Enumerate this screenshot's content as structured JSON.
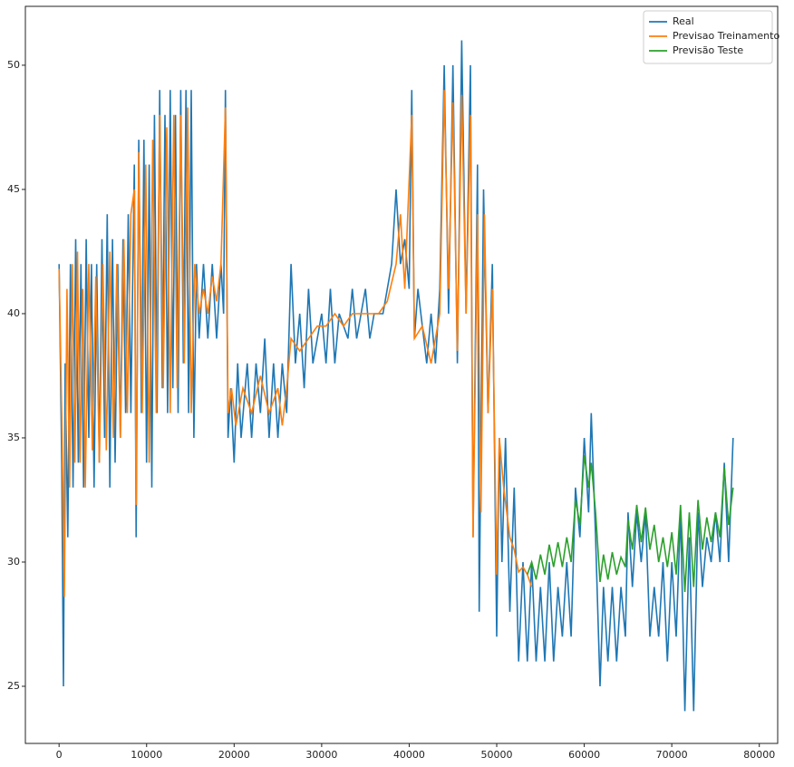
{
  "chart_data": {
    "type": "line",
    "xlim": [
      -3850,
      82100
    ],
    "ylim": [
      22.7,
      52.37
    ],
    "xticks": [
      0,
      10000,
      20000,
      30000,
      40000,
      50000,
      60000,
      70000,
      80000
    ],
    "yticks": [
      25,
      30,
      35,
      40,
      45,
      50
    ],
    "legend": "upper right",
    "series": [
      {
        "name": "Real",
        "color": "#1f77b4",
        "x": [
          0,
          300,
          500,
          700,
          1000,
          1300,
          1600,
          1900,
          2200,
          2500,
          2800,
          3100,
          3400,
          3700,
          4000,
          4300,
          4600,
          4900,
          5200,
          5500,
          5800,
          6100,
          6400,
          6700,
          7000,
          7300,
          7600,
          7900,
          8200,
          8600,
          8800,
          9100,
          9400,
          9700,
          10000,
          10300,
          10600,
          10900,
          11200,
          11500,
          11800,
          12100,
          12400,
          12700,
          13000,
          13300,
          13600,
          13900,
          14200,
          14500,
          14800,
          15100,
          15400,
          15700,
          16000,
          16500,
          17000,
          17500,
          18000,
          18500,
          18800,
          19000,
          19300,
          19600,
          20000,
          20400,
          20800,
          21500,
          22000,
          22500,
          23000,
          23500,
          24000,
          24500,
          25000,
          25500,
          26000,
          26500,
          27000,
          27500,
          28000,
          28500,
          29000,
          30000,
          30500,
          31000,
          31500,
          32000,
          33000,
          33500,
          34000,
          35000,
          35500,
          36000,
          37000,
          37500,
          38000,
          38500,
          39000,
          39500,
          40000,
          40300,
          40600,
          41000,
          42000,
          42500,
          43000,
          43500,
          44000,
          44500,
          45000,
          45500,
          46000,
          46500,
          47000,
          47300,
          47800,
          48000,
          48500,
          49000,
          49500,
          50000,
          50300,
          50600,
          51000,
          51500,
          52000,
          52500,
          53000,
          53500,
          54000,
          54500,
          55000,
          55500,
          56000,
          56500,
          57000,
          57500,
          58000,
          58500,
          59000,
          59500,
          60000,
          60500,
          60800,
          61300,
          61800,
          62200,
          62700,
          63200,
          63700,
          64200,
          64700,
          65000,
          65500,
          66000,
          66500,
          67000,
          67500,
          68000,
          68500,
          69000,
          69500,
          70000,
          70500,
          71000,
          71500,
          72000,
          72500,
          73000,
          73500,
          74000,
          74500,
          75000,
          75500,
          76000,
          76500,
          77000
        ],
        "values": [
          42,
          34,
          25,
          38,
          31,
          42,
          33,
          43,
          34,
          42,
          33,
          43,
          35,
          42,
          33,
          42,
          34,
          43,
          35,
          44,
          33,
          43,
          34,
          42,
          35,
          43,
          36,
          44,
          36,
          46,
          31,
          47,
          36,
          47,
          34,
          46,
          33,
          48,
          36,
          49,
          37,
          48,
          36,
          49,
          37,
          48,
          36,
          49,
          38,
          49,
          36,
          49,
          35,
          42,
          39,
          42,
          39,
          42,
          39,
          42,
          40,
          49,
          35,
          37,
          34,
          38,
          35,
          38,
          35,
          38,
          36,
          39,
          35,
          38,
          35,
          38,
          36,
          42,
          38,
          40,
          37,
          41,
          38,
          40,
          38,
          41,
          38,
          40,
          39,
          41,
          39,
          41,
          39,
          40,
          40,
          41,
          42,
          45,
          42,
          43,
          41,
          49,
          39,
          41,
          38,
          40,
          38,
          41,
          50,
          40,
          50,
          38,
          51,
          40,
          50,
          31,
          46,
          28,
          45,
          36,
          42,
          27,
          35,
          30,
          35,
          28,
          33,
          26,
          30,
          26,
          30,
          26,
          29,
          26,
          30,
          26,
          29,
          27,
          30,
          27,
          33,
          31,
          35,
          32,
          36,
          31,
          25,
          29,
          26,
          29,
          26,
          29,
          27,
          32,
          29,
          32,
          30,
          32,
          27,
          29,
          27,
          30,
          26,
          30,
          27,
          32,
          24,
          31,
          24,
          32,
          29,
          31,
          30,
          32,
          30,
          34,
          30,
          35
        ]
      },
      {
        "name": "Previsao Treinamento",
        "color": "#ff7f0e",
        "x": [
          0,
          300,
          600,
          900,
          1200,
          1500,
          1800,
          2100,
          2400,
          2700,
          3000,
          3400,
          3800,
          4200,
          4600,
          5000,
          5400,
          5800,
          6200,
          6600,
          7000,
          7400,
          7800,
          8200,
          8600,
          8800,
          9100,
          9500,
          9900,
          10300,
          10700,
          11100,
          11500,
          11900,
          12300,
          12700,
          13100,
          13500,
          13900,
          14300,
          14700,
          15100,
          15500,
          16000,
          16500,
          17000,
          17500,
          18000,
          18500,
          19000,
          19300,
          19700,
          20200,
          21000,
          22000,
          23000,
          24000,
          25000,
          25500,
          26000,
          26500,
          27500,
          28500,
          29500,
          30500,
          31500,
          32500,
          33500,
          34500,
          35500,
          36500,
          37500,
          38500,
          39000,
          39500,
          40300,
          40600,
          41500,
          42500,
          43500,
          44000,
          44500,
          45000,
          45500,
          46000,
          46500,
          47000,
          47300,
          47800,
          48200,
          48600,
          49000,
          49500,
          50000,
          50300,
          50800,
          51500,
          52000,
          52500,
          53000,
          53500,
          54000
        ],
        "values": [
          41.8,
          36,
          28.6,
          41,
          33,
          42,
          34,
          42.5,
          34,
          41,
          33,
          42,
          34.5,
          41.5,
          34,
          42,
          34.5,
          42.5,
          35,
          42,
          35,
          43,
          36,
          44,
          45,
          32.3,
          46.5,
          36,
          46,
          34,
          47,
          36,
          48,
          37,
          47.5,
          36,
          48,
          37,
          48,
          38,
          48.3,
          36,
          42,
          40,
          41,
          40,
          41.5,
          40.5,
          42,
          48.3,
          36,
          37,
          35.5,
          37,
          36,
          37.5,
          36,
          37,
          35.5,
          37,
          39,
          38.5,
          39,
          39.5,
          39.5,
          40,
          39.5,
          40,
          40,
          40,
          40,
          40.5,
          42,
          44,
          41,
          48,
          39,
          39.5,
          38,
          40,
          49,
          41,
          48.5,
          38.5,
          48.8,
          40,
          48,
          31,
          44,
          32,
          44,
          36,
          41,
          29.5,
          35,
          33,
          31,
          30.5,
          29.6,
          29.8,
          29.5,
          29
        ]
      },
      {
        "name": "Previsão Teste",
        "color": "#2ca02c",
        "x": [
          53500,
          54000,
          54500,
          55000,
          55500,
          56000,
          56500,
          57000,
          57500,
          58000,
          58500,
          59000,
          59500,
          60000,
          60500,
          60800,
          61300,
          61800,
          62200,
          62700,
          63200,
          63700,
          64200,
          64700,
          65000,
          65500,
          66000,
          66500,
          67000,
          67500,
          68000,
          68500,
          69000,
          69500,
          70000,
          70500,
          71000,
          71500,
          72000,
          72500,
          73000,
          73500,
          74000,
          74500,
          75000,
          75500,
          76000,
          76500,
          77000
        ],
        "values": [
          29.5,
          30,
          29.3,
          30.3,
          29.5,
          30.7,
          29.8,
          30.8,
          29.8,
          31,
          30,
          32.5,
          31.5,
          34.3,
          33,
          34,
          32,
          29.2,
          30.3,
          29.3,
          30.4,
          29.5,
          30.2,
          29.8,
          31.7,
          30.5,
          32.3,
          30.8,
          32.2,
          30.5,
          31.5,
          30,
          31,
          29.8,
          31.2,
          29.5,
          32.3,
          28.8,
          32,
          29,
          32.5,
          30.5,
          31.8,
          30.8,
          32,
          31,
          33.8,
          31.5,
          33
        ]
      }
    ]
  }
}
